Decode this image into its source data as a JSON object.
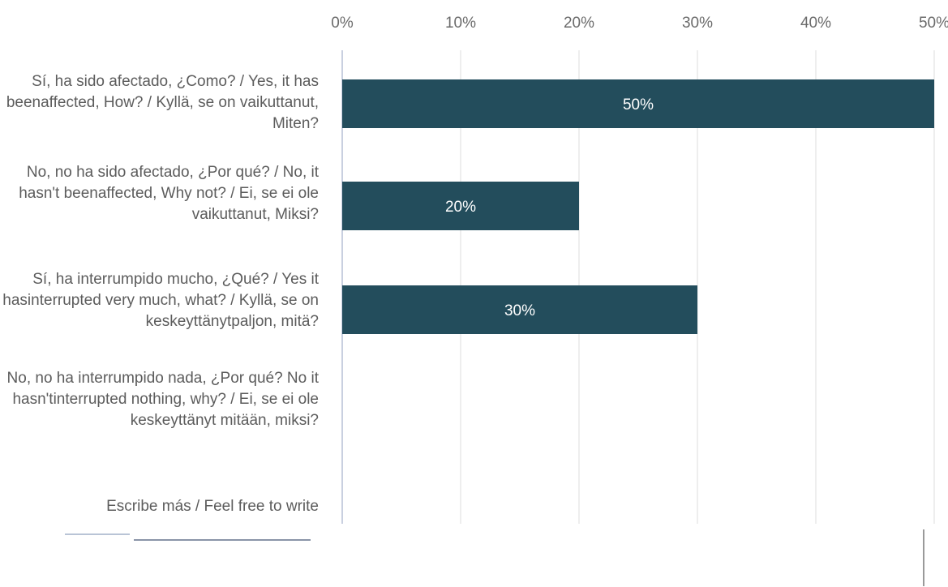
{
  "chart_data": {
    "type": "bar",
    "orientation": "horizontal",
    "title": "",
    "xlabel": "",
    "ylabel": "",
    "x_ticks": [
      "0%",
      "10%",
      "20%",
      "30%",
      "40%",
      "50%"
    ],
    "xlim": [
      0,
      50
    ],
    "grid": true,
    "legend": "none",
    "bar_color": "#234d5c",
    "categories": [
      "Sí, ha sido afectado, ¿Como? / Yes, it has beenaffected, How? / Kyllä, se on vaikuttanut, Miten?",
      "No, no ha sido afectado, ¿Por qué? / No, it hasn't beenaffected, Why not? / Ei, se ei ole vaikuttanut, Miksi?",
      "Sí, ha interrumpido mucho, ¿Qué? / Yes it hasinterrupted very much, what? / Kyllä, se on keskeyttänytpaljon, mitä?",
      "No, no ha interrumpido nada, ¿Por qué? No it hasn'tinterrupted nothing, why? / Ei, se ei ole keskeyttänyt mitään, miksi?",
      "Escribe más / Feel free to write"
    ],
    "values": [
      50,
      20,
      30,
      0,
      0
    ],
    "data_labels": [
      "50%",
      "20%",
      "30%",
      "",
      ""
    ]
  }
}
